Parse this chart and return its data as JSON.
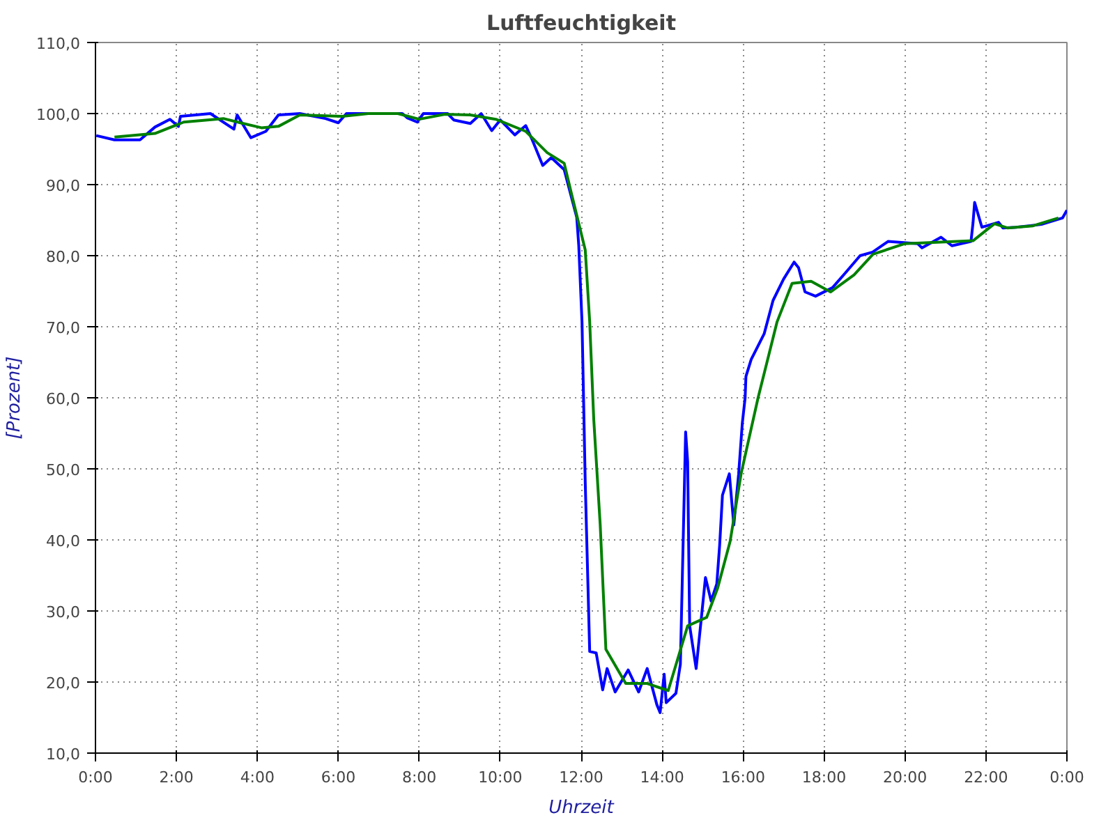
{
  "chart_data": {
    "type": "line",
    "title": "Luftfeuchtigkeit",
    "xlabel": "Uhrzeit",
    "ylabel": "[Prozent]",
    "xlim": [
      0,
      24
    ],
    "ylim": [
      10,
      110
    ],
    "xticks": [
      {
        "value": 0,
        "label": "0:00"
      },
      {
        "value": 2,
        "label": "2:00"
      },
      {
        "value": 4,
        "label": "4:00"
      },
      {
        "value": 6,
        "label": "6:00"
      },
      {
        "value": 8,
        "label": "8:00"
      },
      {
        "value": 10,
        "label": "10:00"
      },
      {
        "value": 12,
        "label": "12:00"
      },
      {
        "value": 14,
        "label": "14:00"
      },
      {
        "value": 16,
        "label": "16:00"
      },
      {
        "value": 18,
        "label": "18:00"
      },
      {
        "value": 20,
        "label": "20:00"
      },
      {
        "value": 22,
        "label": "22:00"
      },
      {
        "value": 24,
        "label": "0:00"
      }
    ],
    "yticks": [
      {
        "value": 10,
        "label": "10,0"
      },
      {
        "value": 20,
        "label": "20,0"
      },
      {
        "value": 30,
        "label": "30,0"
      },
      {
        "value": 40,
        "label": "40,0"
      },
      {
        "value": 50,
        "label": "50,0"
      },
      {
        "value": 60,
        "label": "60,0"
      },
      {
        "value": 70,
        "label": "70,0"
      },
      {
        "value": 80,
        "label": "80,0"
      },
      {
        "value": 90,
        "label": "90,0"
      },
      {
        "value": 100,
        "label": "100,0"
      },
      {
        "value": 110,
        "label": "110,0"
      }
    ],
    "grid": true,
    "line_style": "solid",
    "marker": "none",
    "series": [
      {
        "color": "#0000ff",
        "x": [
          0.02,
          0.47,
          1.1,
          1.47,
          1.84,
          2.05,
          2.1,
          2.84,
          3.42,
          3.5,
          3.84,
          4.21,
          4.52,
          5.05,
          5.68,
          6.0,
          6.2,
          7.58,
          7.7,
          7.95,
          8.1,
          8.7,
          8.85,
          9.26,
          9.53,
          9.79,
          10.0,
          10.36,
          10.63,
          10.79,
          11.05,
          11.26,
          11.58,
          11.89,
          11.94,
          12.02,
          12.1,
          12.21,
          12.37,
          12.53,
          12.64,
          12.84,
          13.16,
          13.42,
          13.63,
          13.87,
          13.95,
          14.05,
          14.1,
          14.34,
          14.45,
          14.5,
          14.58,
          14.63,
          14.68,
          14.84,
          14.97,
          15.07,
          15.21,
          15.35,
          15.42,
          15.49,
          15.66,
          15.77,
          15.89,
          15.98,
          16.05,
          16.07,
          16.2,
          16.52,
          16.74,
          17.0,
          17.26,
          17.37,
          17.53,
          17.79,
          18.21,
          18.53,
          18.89,
          19.2,
          19.58,
          20.31,
          20.42,
          20.89,
          21.16,
          21.63,
          21.68,
          21.72,
          21.9,
          22.31,
          22.42,
          22.74,
          23.37,
          23.89,
          24.0
        ],
        "values": [
          96.9,
          96.3,
          96.3,
          98.1,
          99.2,
          98.2,
          99.6,
          100,
          97.8,
          99.8,
          96.6,
          97.5,
          99.8,
          100,
          99.3,
          98.7,
          100,
          100,
          99.4,
          98.8,
          100,
          100,
          99.1,
          98.6,
          100,
          97.6,
          99.1,
          97.0,
          98.3,
          96.3,
          92.7,
          93.8,
          92.1,
          85.4,
          81.4,
          70.7,
          48.1,
          24.3,
          24.1,
          18.9,
          21.9,
          18.6,
          21.7,
          18.6,
          21.9,
          16.8,
          15.7,
          21.1,
          17.1,
          18.4,
          22.5,
          35,
          55.2,
          51,
          27.9,
          21.9,
          29.1,
          34.7,
          31.4,
          33.8,
          39.2,
          46.3,
          49.3,
          42.1,
          49.3,
          56.4,
          60,
          63.0,
          65.4,
          69,
          73.7,
          76.7,
          79.1,
          78.3,
          74.9,
          74.3,
          75.5,
          77.6,
          80,
          80.5,
          82,
          81.7,
          81.1,
          82.6,
          81.4,
          82,
          84.6,
          87.5,
          84,
          84.7,
          83.9,
          84,
          84.4,
          85.3,
          86.4
        ]
      },
      {
        "color": "#008000",
        "x": [
          0.47,
          1.47,
          2.18,
          3.16,
          3.58,
          4.1,
          4.52,
          5.05,
          6.1,
          6.74,
          7.47,
          8.0,
          8.63,
          9.26,
          9.89,
          10.63,
          11.16,
          11.58,
          11.74,
          12.1,
          12.21,
          12.31,
          12.47,
          12.61,
          13.1,
          13.63,
          14.15,
          14.63,
          15.1,
          15.37,
          15.68,
          15.95,
          16.37,
          16.84,
          17.21,
          17.68,
          18.16,
          18.74,
          19.21,
          20.0,
          21.68,
          22.21,
          22.53,
          23.16,
          23.79
        ],
        "values": [
          96.7,
          97.2,
          98.8,
          99.3,
          98.7,
          98.0,
          98.2,
          99.8,
          99.6,
          100,
          100,
          99.2,
          99.9,
          99.8,
          99.2,
          97.5,
          94.5,
          93.0,
          89.2,
          80.8,
          70.7,
          57,
          42.1,
          24.6,
          19.8,
          19.8,
          18.8,
          27.9,
          29.1,
          33.2,
          39.8,
          49.3,
          60,
          70.7,
          76.1,
          76.4,
          74.9,
          77.3,
          80.2,
          81.7,
          82.1,
          84.5,
          83.9,
          84.2,
          85.3
        ]
      }
    ]
  }
}
